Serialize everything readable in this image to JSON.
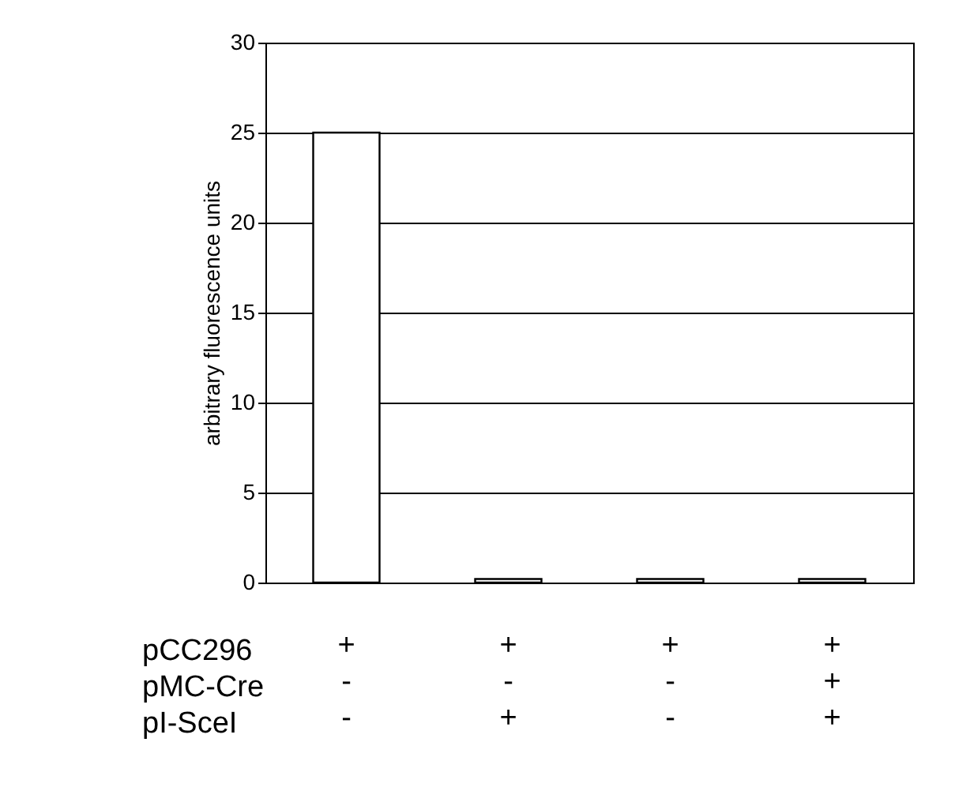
{
  "chart_data": {
    "type": "bar",
    "ylabel": "arbitrary fluorescence units",
    "categories": [
      "+\n-\n-",
      "+\n-\n+",
      "+\n-\n-",
      "+\n+\n+"
    ],
    "values": [
      25,
      0.2,
      0.2,
      0.2
    ],
    "color": "#ffffff",
    "ylim": [
      0,
      30
    ],
    "yticks": [
      0,
      5,
      10,
      15,
      20,
      25,
      30
    ],
    "grid": "y",
    "annotations": [
      "pCC296",
      "pMC-Cre",
      "pI-SceI"
    ]
  }
}
